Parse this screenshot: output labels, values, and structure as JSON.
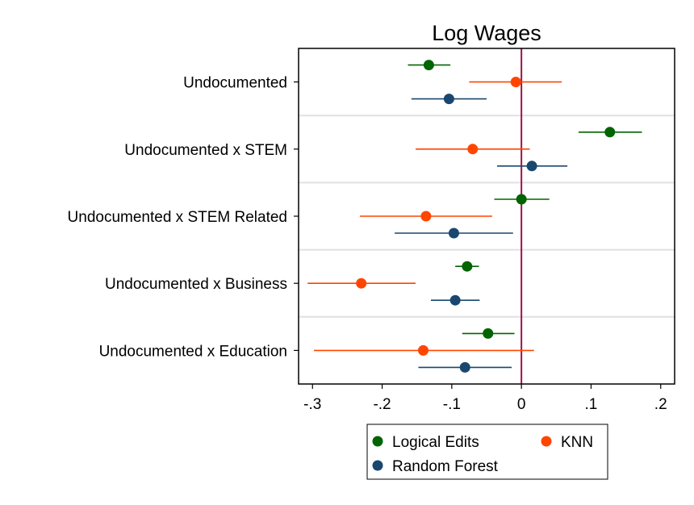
{
  "chart_data": {
    "type": "scatter",
    "subtype": "coefficient-plot",
    "title": "Log Wages",
    "xlabel": "",
    "ylabel": "",
    "xlim": [
      -0.32,
      0.22
    ],
    "x_ticks": [
      {
        "value": -0.3,
        "label": "-.3"
      },
      {
        "value": -0.2,
        "label": "-.2"
      },
      {
        "value": -0.1,
        "label": "-.1"
      },
      {
        "value": 0,
        "label": "0"
      },
      {
        "value": 0.1,
        "label": ".1"
      },
      {
        "value": 0.2,
        "label": ".2"
      }
    ],
    "reference_line": {
      "x": 0,
      "color": "#a0124b"
    },
    "grid": true,
    "legend_position": "bottom",
    "categories": [
      "Undocumented",
      "Undocumented x STEM",
      "Undocumented x STEM Related",
      "Undocumented x Business",
      "Undocumented x Education"
    ],
    "series": [
      {
        "name": "Logical Edits",
        "color": "#006400",
        "estimates": [
          -0.133,
          0.127,
          0.0,
          -0.078,
          -0.048
        ],
        "ci_low": [
          -0.163,
          0.082,
          -0.039,
          -0.095,
          -0.085
        ],
        "ci_high": [
          -0.102,
          0.173,
          0.04,
          -0.061,
          -0.01
        ]
      },
      {
        "name": "KNN",
        "color": "#ff4500",
        "estimates": [
          -0.008,
          -0.07,
          -0.137,
          -0.23,
          -0.141
        ],
        "ci_low": [
          -0.075,
          -0.152,
          -0.232,
          -0.307,
          -0.298
        ],
        "ci_high": [
          0.058,
          0.012,
          -0.042,
          -0.152,
          0.018
        ]
      },
      {
        "name": "Random Forest",
        "color": "#1a476f",
        "estimates": [
          -0.104,
          0.015,
          -0.097,
          -0.095,
          -0.081
        ],
        "ci_low": [
          -0.158,
          -0.035,
          -0.182,
          -0.13,
          -0.148
        ],
        "ci_high": [
          -0.05,
          0.066,
          -0.012,
          -0.06,
          -0.014
        ]
      }
    ]
  }
}
